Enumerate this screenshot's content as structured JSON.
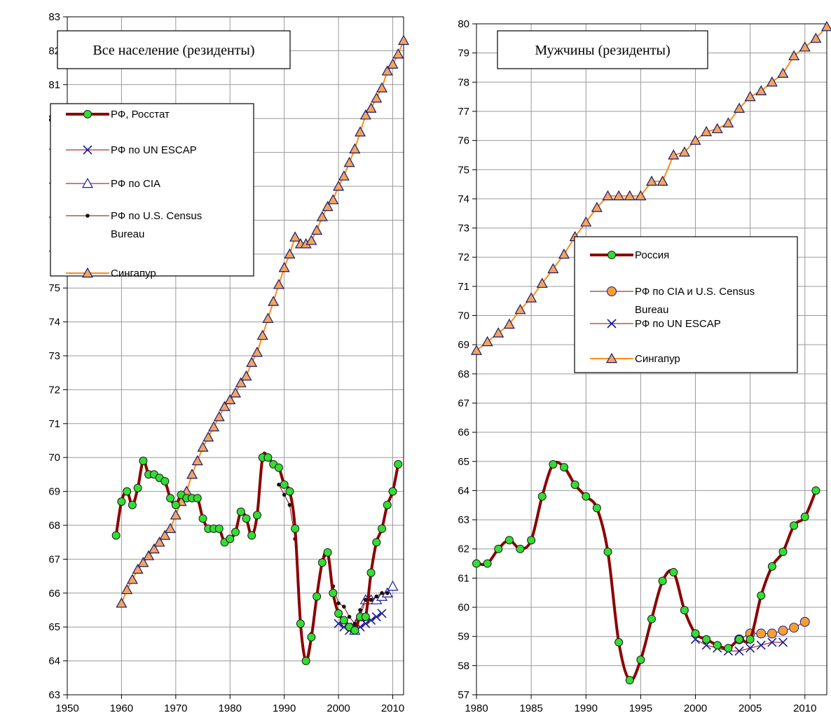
{
  "chart_data": [
    {
      "type": "line",
      "title": "Все население (резиденты)",
      "xlim": [
        1950,
        2012
      ],
      "ylim": [
        63,
        83
      ],
      "x_ticks": [
        1950,
        1960,
        1970,
        1980,
        1990,
        2000,
        2010
      ],
      "y_ticks": [
        63,
        64,
        65,
        66,
        67,
        68,
        69,
        70,
        71,
        72,
        73,
        74,
        75,
        76,
        77,
        78,
        79,
        80,
        81,
        82,
        83
      ],
      "grid": true,
      "legend_position": "top-left",
      "series": [
        {
          "name": "РФ, Росстат",
          "color": "#8B0000",
          "marker": "circle",
          "marker_color": "#33DD33",
          "line_width": 4,
          "smooth": true,
          "points": [
            [
              1959,
              67.7
            ],
            [
              1960,
              68.7
            ],
            [
              1961,
              69.0
            ],
            [
              1962,
              68.6
            ],
            [
              1963,
              69.1
            ],
            [
              1964,
              69.9
            ],
            [
              1965,
              69.5
            ],
            [
              1966,
              69.5
            ],
            [
              1967,
              69.4
            ],
            [
              1968,
              69.3
            ],
            [
              1969,
              68.8
            ],
            [
              1970,
              68.6
            ],
            [
              1971,
              68.9
            ],
            [
              1972,
              68.8
            ],
            [
              1973,
              68.8
            ],
            [
              1974,
              68.8
            ],
            [
              1975,
              68.2
            ],
            [
              1976,
              67.9
            ],
            [
              1977,
              67.9
            ],
            [
              1978,
              67.9
            ],
            [
              1979,
              67.5
            ],
            [
              1980,
              67.6
            ],
            [
              1981,
              67.8
            ],
            [
              1982,
              68.4
            ],
            [
              1983,
              68.2
            ],
            [
              1984,
              67.7
            ],
            [
              1985,
              68.3
            ],
            [
              1986,
              70.0
            ],
            [
              1987,
              70.0
            ],
            [
              1988,
              69.8
            ],
            [
              1989,
              69.7
            ],
            [
              1990,
              69.2
            ],
            [
              1991,
              69.0
            ],
            [
              1992,
              67.9
            ],
            [
              1993,
              65.1
            ],
            [
              1994,
              64.0
            ],
            [
              1995,
              64.7
            ],
            [
              1996,
              65.9
            ],
            [
              1997,
              66.9
            ],
            [
              1998,
              67.2
            ],
            [
              1999,
              66.0
            ],
            [
              2000,
              65.4
            ],
            [
              2001,
              65.2
            ],
            [
              2002,
              65.0
            ],
            [
              2003,
              64.9
            ],
            [
              2004,
              65.3
            ],
            [
              2005,
              65.3
            ],
            [
              2006,
              66.6
            ],
            [
              2007,
              67.5
            ],
            [
              2008,
              67.9
            ],
            [
              2009,
              68.6
            ],
            [
              2010,
              69.0
            ],
            [
              2011,
              69.8
            ]
          ]
        },
        {
          "name": "РФ по UN ESCAP",
          "color": "#8B0000",
          "marker": "x",
          "marker_color": "#1a1a99",
          "line_width": 1,
          "points": [
            [
              2000,
              65.1
            ],
            [
              2001,
              65.0
            ],
            [
              2002,
              64.9
            ],
            [
              2003,
              65.0
            ],
            [
              2004,
              65.0
            ],
            [
              2005,
              65.1
            ],
            [
              2006,
              65.2
            ],
            [
              2007,
              65.3
            ],
            [
              2008,
              65.4
            ]
          ]
        },
        {
          "name": "РФ по CIA",
          "color": "#8B0000",
          "marker": "triangle",
          "marker_color": "#ffffff",
          "marker_stroke": "#1a1a99",
          "line_width": 1,
          "points": [
            [
              2003,
              64.9
            ],
            [
              2004,
              65.3
            ],
            [
              2005,
              65.8
            ],
            [
              2006,
              65.8
            ],
            [
              2007,
              65.8
            ],
            [
              2008,
              65.9
            ],
            [
              2009,
              66.0
            ],
            [
              2010,
              66.2
            ]
          ]
        },
        {
          "name": "РФ по U.S. Census Bureau",
          "color": "#8B0000",
          "marker": "dot",
          "marker_color": "#111111",
          "line_width": 1,
          "points": [
            [
              1989,
              69.2
            ],
            [
              1990,
              68.9
            ],
            [
              1991,
              68.6
            ],
            [
              1992,
              67.6
            ],
            [
              1993,
              65.1
            ],
            [
              1994,
              64.0
            ],
            [
              1995,
              64.8
            ],
            [
              1996,
              65.9
            ],
            [
              1997,
              66.9
            ],
            [
              1998,
              67.2
            ],
            [
              1999,
              66.2
            ],
            [
              2000,
              65.7
            ],
            [
              2001,
              65.6
            ],
            [
              2002,
              65.3
            ],
            [
              2003,
              65.1
            ],
            [
              2004,
              65.5
            ],
            [
              2005,
              65.8
            ],
            [
              2006,
              65.8
            ],
            [
              2007,
              65.9
            ],
            [
              2008,
              66.0
            ],
            [
              2009,
              66.0
            ]
          ]
        },
        {
          "name": "Сингапур",
          "color": "#FF8C1A",
          "marker": "triangle",
          "marker_color": "#F4A460",
          "marker_stroke": "#1a1a66",
          "line_width": 2,
          "points": [
            [
              1960,
              65.7
            ],
            [
              1961,
              66.1
            ],
            [
              1962,
              66.4
            ],
            [
              1963,
              66.7
            ],
            [
              1964,
              66.9
            ],
            [
              1965,
              67.1
            ],
            [
              1966,
              67.3
            ],
            [
              1967,
              67.5
            ],
            [
              1968,
              67.7
            ],
            [
              1969,
              67.9
            ],
            [
              1970,
              68.3
            ],
            [
              1971,
              68.7
            ],
            [
              1972,
              69.0
            ],
            [
              1973,
              69.5
            ],
            [
              1974,
              69.9
            ],
            [
              1975,
              70.3
            ],
            [
              1976,
              70.6
            ],
            [
              1977,
              70.9
            ],
            [
              1978,
              71.2
            ],
            [
              1979,
              71.5
            ],
            [
              1980,
              71.7
            ],
            [
              1981,
              71.9
            ],
            [
              1982,
              72.2
            ],
            [
              1983,
              72.4
            ],
            [
              1984,
              72.8
            ],
            [
              1985,
              73.1
            ],
            [
              1986,
              73.6
            ],
            [
              1987,
              74.1
            ],
            [
              1988,
              74.6
            ],
            [
              1989,
              75.1
            ],
            [
              1990,
              75.6
            ],
            [
              1991,
              76.0
            ],
            [
              1992,
              76.5
            ],
            [
              1993,
              76.3
            ],
            [
              1994,
              76.3
            ],
            [
              1995,
              76.4
            ],
            [
              1996,
              76.7
            ],
            [
              1997,
              77.1
            ],
            [
              1998,
              77.4
            ],
            [
              1999,
              77.6
            ],
            [
              2000,
              78.0
            ],
            [
              2001,
              78.3
            ],
            [
              2002,
              78.7
            ],
            [
              2003,
              79.1
            ],
            [
              2004,
              79.6
            ],
            [
              2005,
              80.1
            ],
            [
              2006,
              80.3
            ],
            [
              2007,
              80.6
            ],
            [
              2008,
              80.9
            ],
            [
              2009,
              81.4
            ],
            [
              2010,
              81.6
            ],
            [
              2011,
              81.9
            ],
            [
              2012,
              82.3
            ]
          ]
        }
      ]
    },
    {
      "type": "line",
      "title": "Мужчины (резиденты)",
      "xlim": [
        1980,
        2012
      ],
      "ylim": [
        57,
        80
      ],
      "x_ticks": [
        1980,
        1985,
        1990,
        1995,
        2000,
        2005,
        2010
      ],
      "y_ticks": [
        57,
        58,
        59,
        60,
        61,
        62,
        63,
        64,
        65,
        66,
        67,
        68,
        69,
        70,
        71,
        72,
        73,
        74,
        75,
        76,
        77,
        78,
        79,
        80
      ],
      "grid": true,
      "legend_position": "center-right",
      "series": [
        {
          "name": "Россия",
          "color": "#8B0000",
          "marker": "circle",
          "marker_color": "#33DD33",
          "line_width": 4,
          "smooth": true,
          "points": [
            [
              1980,
              61.5
            ],
            [
              1981,
              61.5
            ],
            [
              1982,
              62.0
            ],
            [
              1983,
              62.3
            ],
            [
              1984,
              62.0
            ],
            [
              1985,
              62.3
            ],
            [
              1986,
              63.8
            ],
            [
              1987,
              64.9
            ],
            [
              1988,
              64.8
            ],
            [
              1989,
              64.2
            ],
            [
              1990,
              63.8
            ],
            [
              1991,
              63.4
            ],
            [
              1992,
              61.9
            ],
            [
              1993,
              58.8
            ],
            [
              1994,
              57.5
            ],
            [
              1995,
              58.2
            ],
            [
              1996,
              59.6
            ],
            [
              1997,
              60.9
            ],
            [
              1998,
              61.2
            ],
            [
              1999,
              59.9
            ],
            [
              2000,
              59.1
            ],
            [
              2001,
              58.9
            ],
            [
              2002,
              58.7
            ],
            [
              2003,
              58.6
            ],
            [
              2004,
              58.9
            ],
            [
              2005,
              58.9
            ],
            [
              2006,
              60.4
            ],
            [
              2007,
              61.4
            ],
            [
              2008,
              61.9
            ],
            [
              2009,
              62.8
            ],
            [
              2010,
              63.1
            ],
            [
              2011,
              64.0
            ]
          ]
        },
        {
          "name": "РФ по CIA и U.S. Census Bureau",
          "color": "#8B0000",
          "marker": "circle",
          "marker_color": "#F4A030",
          "marker_stroke": "#1a1a99",
          "line_width": 1,
          "points": [
            [
              2004,
              58.9
            ],
            [
              2005,
              59.1
            ],
            [
              2006,
              59.1
            ],
            [
              2007,
              59.1
            ],
            [
              2008,
              59.2
            ],
            [
              2009,
              59.3
            ],
            [
              2010,
              59.5
            ]
          ]
        },
        {
          "name": "РФ по UN ESCAP",
          "color": "#8B0000",
          "marker": "x",
          "marker_color": "#1a1a99",
          "line_width": 1,
          "points": [
            [
              2000,
              58.9
            ],
            [
              2001,
              58.7
            ],
            [
              2002,
              58.6
            ],
            [
              2003,
              58.5
            ],
            [
              2004,
              58.5
            ],
            [
              2005,
              58.6
            ],
            [
              2006,
              58.7
            ],
            [
              2007,
              58.8
            ],
            [
              2008,
              58.8
            ]
          ]
        },
        {
          "name": "Сингапур",
          "color": "#FF8C1A",
          "marker": "triangle",
          "marker_color": "#F4A460",
          "marker_stroke": "#1a1a66",
          "line_width": 2,
          "points": [
            [
              1980,
              68.8
            ],
            [
              1981,
              69.1
            ],
            [
              1982,
              69.4
            ],
            [
              1983,
              69.7
            ],
            [
              1984,
              70.2
            ],
            [
              1985,
              70.6
            ],
            [
              1986,
              71.1
            ],
            [
              1987,
              71.6
            ],
            [
              1988,
              72.1
            ],
            [
              1989,
              72.7
            ],
            [
              1990,
              73.2
            ],
            [
              1991,
              73.7
            ],
            [
              1992,
              74.1
            ],
            [
              1993,
              74.1
            ],
            [
              1994,
              74.1
            ],
            [
              1995,
              74.1
            ],
            [
              1996,
              74.6
            ],
            [
              1997,
              74.6
            ],
            [
              1998,
              75.5
            ],
            [
              1999,
              75.6
            ],
            [
              2000,
              76.0
            ],
            [
              2001,
              76.3
            ],
            [
              2002,
              76.4
            ],
            [
              2003,
              76.6
            ],
            [
              2004,
              77.1
            ],
            [
              2005,
              77.5
            ],
            [
              2006,
              77.7
            ],
            [
              2007,
              78.0
            ],
            [
              2008,
              78.3
            ],
            [
              2009,
              78.9
            ],
            [
              2010,
              79.2
            ],
            [
              2011,
              79.5
            ],
            [
              2012,
              79.9
            ]
          ]
        }
      ]
    }
  ]
}
